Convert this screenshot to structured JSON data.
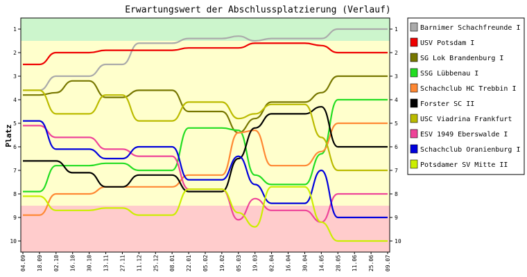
{
  "chart_data": {
    "type": "line",
    "title": "Erwartungswert der Abschlussplatzierung (Verlauf)",
    "xlabel": "",
    "ylabel": "Platz",
    "ylim": [
      1,
      10
    ],
    "y_inverted": true,
    "yticks": [
      "1",
      "2",
      "3",
      "4",
      "5",
      "6",
      "7",
      "8",
      "9",
      "10"
    ],
    "grid": false,
    "legend_position": "right",
    "bands": [
      {
        "from": 0.5,
        "to": 1.5,
        "color": "#ccf5cc"
      },
      {
        "from": 1.5,
        "to": 8.5,
        "color": "#ffffcc"
      },
      {
        "from": 8.5,
        "to": 10.5,
        "color": "#ffcccc"
      }
    ],
    "categories": [
      "04.09",
      "18.09",
      "02.10",
      "16.10",
      "30.10",
      "13.11",
      "27.11",
      "11.12",
      "25.12",
      "08.01",
      "22.01",
      "05.02",
      "19.02",
      "05.03",
      "19.03",
      "02.04",
      "16.04",
      "30.04",
      "14.05",
      "28.05",
      "11.06",
      "25.06",
      "09.07"
    ],
    "series": [
      {
        "name": "Barnimer Schachfreunde I",
        "color": "#aaaaaa",
        "values": [
          3.6,
          3.6,
          3.0,
          3.0,
          3.0,
          2.5,
          2.5,
          1.6,
          1.6,
          1.6,
          1.4,
          1.4,
          1.4,
          1.3,
          1.5,
          1.4,
          1.4,
          1.4,
          1.4,
          1.0,
          1.0,
          1.0,
          1.0
        ]
      },
      {
        "name": "USV Potsdam I",
        "color": "#ee0000",
        "values": [
          2.5,
          2.5,
          2.0,
          2.0,
          2.0,
          1.9,
          1.9,
          1.9,
          1.9,
          1.9,
          1.8,
          1.8,
          1.8,
          1.8,
          1.6,
          1.6,
          1.6,
          1.6,
          1.7,
          2.0,
          2.0,
          2.0,
          2.0
        ]
      },
      {
        "name": "SG Lok Brandenburg I",
        "color": "#777700",
        "values": [
          3.8,
          3.8,
          3.7,
          3.2,
          3.2,
          3.9,
          3.9,
          3.6,
          3.6,
          3.6,
          4.5,
          4.5,
          4.5,
          5.4,
          4.8,
          4.1,
          4.1,
          4.1,
          3.7,
          3.0,
          3.0,
          3.0,
          3.0
        ]
      },
      {
        "name": "SSG Lübbenau I",
        "color": "#22dd22",
        "values": [
          7.9,
          7.9,
          6.8,
          6.8,
          6.8,
          6.7,
          6.7,
          7.0,
          7.0,
          7.0,
          5.2,
          5.2,
          5.2,
          5.3,
          7.2,
          7.6,
          7.6,
          7.6,
          6.3,
          4.0,
          4.0,
          4.0,
          4.0
        ]
      },
      {
        "name": "Schachclub HC Trebbin I",
        "color": "#ff8833",
        "values": [
          8.9,
          8.9,
          8.0,
          8.0,
          8.0,
          7.7,
          7.7,
          7.7,
          7.7,
          7.7,
          7.2,
          7.2,
          7.2,
          5.4,
          5.3,
          6.8,
          6.8,
          6.8,
          6.2,
          5.0,
          5.0,
          5.0,
          5.0
        ]
      },
      {
        "name": "Forster SC II",
        "color": "#000000",
        "values": [
          6.6,
          6.6,
          6.6,
          7.1,
          7.1,
          7.7,
          7.7,
          7.2,
          7.2,
          7.2,
          7.9,
          7.9,
          7.9,
          6.5,
          5.2,
          4.6,
          4.6,
          4.6,
          4.3,
          6.0,
          6.0,
          6.0,
          6.0
        ]
      },
      {
        "name": "USC Viadrina Frankfurt",
        "color": "#bbbb00",
        "values": [
          3.6,
          3.6,
          4.6,
          4.6,
          4.6,
          3.8,
          3.8,
          4.9,
          4.9,
          4.9,
          4.1,
          4.1,
          4.1,
          4.8,
          4.6,
          4.2,
          4.2,
          4.2,
          5.6,
          7.0,
          7.0,
          7.0,
          7.0
        ]
      },
      {
        "name": "ESV 1949 Eberswalde I",
        "color": "#ee4499",
        "values": [
          5.1,
          5.1,
          5.6,
          5.6,
          5.6,
          6.1,
          6.1,
          6.4,
          6.4,
          6.4,
          7.8,
          7.8,
          7.8,
          9.1,
          8.2,
          8.7,
          8.7,
          8.7,
          9.2,
          8.0,
          8.0,
          8.0,
          8.0
        ]
      },
      {
        "name": "Schachclub Oranienburg I",
        "color": "#0000dd",
        "values": [
          4.9,
          4.9,
          6.1,
          6.1,
          6.1,
          6.5,
          6.5,
          6.0,
          6.0,
          6.0,
          7.4,
          7.4,
          7.4,
          6.4,
          7.6,
          8.4,
          8.4,
          8.4,
          7.0,
          9.0,
          9.0,
          9.0,
          9.0
        ]
      },
      {
        "name": "Potsdamer SV Mitte II",
        "color": "#ccee00",
        "values": [
          8.1,
          8.1,
          8.7,
          8.7,
          8.7,
          8.6,
          8.6,
          8.9,
          8.9,
          8.9,
          7.8,
          7.8,
          7.8,
          8.8,
          9.4,
          7.7,
          7.7,
          7.7,
          9.2,
          10.0,
          10.0,
          10.0,
          10.0
        ]
      }
    ]
  }
}
